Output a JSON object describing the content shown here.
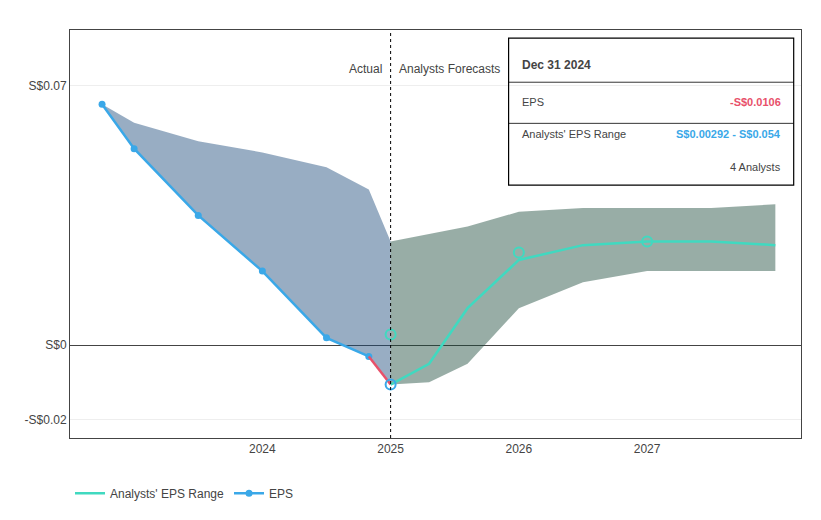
{
  "chart_data": {
    "type": "line",
    "xlim": [
      2022.5,
      2028.2
    ],
    "xticks": [
      2024,
      2025,
      2026,
      2027
    ],
    "ylim": [
      -0.025,
      0.085
    ],
    "yticks": [
      {
        "value": 0.07,
        "label": "S$0.07"
      },
      {
        "value": 0.0,
        "label": "S$0"
      },
      {
        "value": -0.02,
        "label": "-S$0.02"
      }
    ],
    "grid": true,
    "legend": "bottom",
    "divider_x": 2025.0,
    "annotations": [
      {
        "text": "Actual",
        "x": 2024.95,
        "y": 0.072
      },
      {
        "text": "Analysts Forecasts",
        "x": 2025.05,
        "y": 0.072
      }
    ],
    "series": [
      {
        "type": "band",
        "color": "#1a4a7a",
        "x": [
          2022.75,
          2023.0,
          2023.5,
          2024.0,
          2024.5,
          2024.83,
          2025.0
        ],
        "lower": [
          0.065,
          0.053,
          0.035,
          0.02,
          0.002,
          -0.003,
          -0.0106
        ],
        "upper": [
          0.065,
          0.06,
          0.055,
          0.052,
          0.048,
          0.042,
          0.028
        ]
      },
      {
        "type": "band",
        "color": "#1a4a3a",
        "x": [
          2025.0,
          2025.3,
          2025.6,
          2026.0,
          2026.5,
          2027.0,
          2027.5,
          2028.0
        ],
        "lower": [
          -0.0106,
          -0.01,
          -0.005,
          0.01,
          0.017,
          0.02,
          0.02,
          0.02
        ],
        "upper": [
          0.028,
          0.03,
          0.032,
          0.036,
          0.037,
          0.037,
          0.037,
          0.038
        ]
      },
      {
        "name": "EPS",
        "type": "line",
        "marker": "circle",
        "color": "#3aa8e8",
        "x": [
          2022.75,
          2023.0,
          2023.5,
          2024.0,
          2024.5,
          2024.83
        ],
        "values": [
          0.065,
          0.053,
          0.035,
          0.02,
          0.002,
          -0.003
        ]
      },
      {
        "type": "line",
        "color": "#e8506a",
        "x": [
          2024.83,
          2025.0
        ],
        "values": [
          -0.003,
          -0.0106
        ]
      },
      {
        "name": "Analysts' EPS Range",
        "type": "line",
        "color": "#40d9c0",
        "x": [
          2025.0,
          2025.3,
          2025.6,
          2026.0,
          2026.5,
          2027.0,
          2027.5,
          2028.0
        ],
        "values": [
          -0.0106,
          -0.005,
          0.01,
          0.023,
          0.027,
          0.028,
          0.028,
          0.027
        ]
      },
      {
        "type": "scatter",
        "marker": "circle-open",
        "color": "#3aa8e8",
        "x": [
          2025.0
        ],
        "values": [
          -0.0106
        ]
      },
      {
        "type": "scatter",
        "marker": "circle-open",
        "color": "#40d9c0",
        "x": [
          2025.0,
          2026.0,
          2027.0
        ],
        "values": [
          0.00292,
          0.025,
          0.028
        ]
      }
    ],
    "tooltip": {
      "title": "Dec 31 2024",
      "rows": [
        {
          "label": "EPS",
          "value": "-S$0.0106",
          "color": "#e8506a"
        },
        {
          "label": "Analysts' EPS Range",
          "value": "S$0.00292 - S$0.054",
          "color": "#3aa8e8"
        }
      ],
      "note": "4 Analysts"
    }
  }
}
